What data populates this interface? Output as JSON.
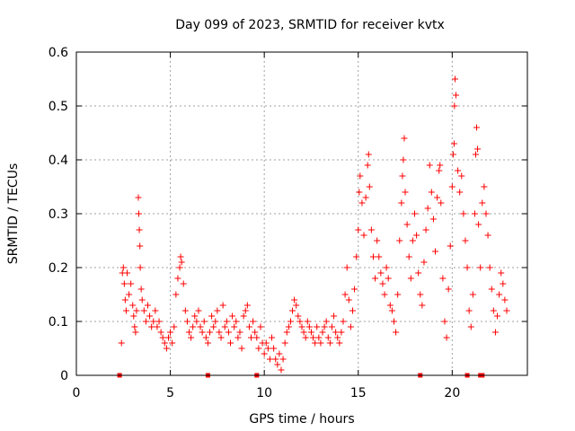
{
  "chart_data": {
    "type": "scatter",
    "title": "Day 099 of 2023, SRMTID for receiver kvtx",
    "xlabel": "GPS time / hours",
    "ylabel": "SRMTID / TECUs",
    "xlim": [
      0,
      24
    ],
    "ylim": [
      0,
      0.6
    ],
    "x_ticks": [
      0,
      5,
      10,
      15,
      20
    ],
    "x_tick_labels": [
      "0",
      "5",
      "10",
      "15",
      "20"
    ],
    "y_ticks": [
      0,
      0.1,
      0.2,
      0.3,
      0.4,
      0.5,
      0.6
    ],
    "y_tick_labels": [
      "0",
      "0.1",
      "0.2",
      "0.3",
      "0.4",
      "0.5",
      "0.6"
    ],
    "grid": true,
    "marker": "+",
    "color": "#ff0000",
    "series": [
      {
        "name": "SRMTID",
        "points": [
          [
            2.4,
            0.06
          ],
          [
            2.45,
            0.19
          ],
          [
            2.5,
            0.2
          ],
          [
            2.55,
            0.17
          ],
          [
            2.6,
            0.14
          ],
          [
            2.65,
            0.12
          ],
          [
            2.7,
            0.19
          ],
          [
            2.8,
            0.15
          ],
          [
            2.9,
            0.17
          ],
          [
            3.0,
            0.13
          ],
          [
            3.05,
            0.11
          ],
          [
            3.1,
            0.09
          ],
          [
            3.15,
            0.08
          ],
          [
            3.2,
            0.12
          ],
          [
            3.3,
            0.33
          ],
          [
            3.32,
            0.3
          ],
          [
            3.35,
            0.27
          ],
          [
            3.38,
            0.24
          ],
          [
            3.4,
            0.2
          ],
          [
            3.45,
            0.16
          ],
          [
            3.5,
            0.14
          ],
          [
            3.6,
            0.12
          ],
          [
            3.7,
            0.1
          ],
          [
            3.8,
            0.13
          ],
          [
            3.9,
            0.11
          ],
          [
            4.0,
            0.09
          ],
          [
            4.1,
            0.1
          ],
          [
            4.2,
            0.12
          ],
          [
            4.3,
            0.09
          ],
          [
            4.4,
            0.1
          ],
          [
            4.5,
            0.08
          ],
          [
            4.6,
            0.07
          ],
          [
            4.7,
            0.06
          ],
          [
            4.8,
            0.05
          ],
          [
            4.9,
            0.07
          ],
          [
            5.0,
            0.08
          ],
          [
            5.1,
            0.06
          ],
          [
            5.2,
            0.09
          ],
          [
            5.3,
            0.15
          ],
          [
            5.4,
            0.18
          ],
          [
            5.5,
            0.2
          ],
          [
            5.55,
            0.22
          ],
          [
            5.6,
            0.21
          ],
          [
            5.7,
            0.17
          ],
          [
            5.8,
            0.12
          ],
          [
            5.9,
            0.1
          ],
          [
            6.0,
            0.08
          ],
          [
            6.1,
            0.07
          ],
          [
            6.2,
            0.09
          ],
          [
            6.3,
            0.11
          ],
          [
            6.4,
            0.1
          ],
          [
            6.5,
            0.12
          ],
          [
            6.6,
            0.09
          ],
          [
            6.7,
            0.08
          ],
          [
            6.8,
            0.1
          ],
          [
            6.9,
            0.07
          ],
          [
            7.0,
            0.06
          ],
          [
            7.1,
            0.08
          ],
          [
            7.2,
            0.11
          ],
          [
            7.3,
            0.09
          ],
          [
            7.4,
            0.1
          ],
          [
            7.5,
            0.12
          ],
          [
            7.6,
            0.08
          ],
          [
            7.7,
            0.07
          ],
          [
            7.8,
            0.13
          ],
          [
            7.9,
            0.09
          ],
          [
            8.0,
            0.1
          ],
          [
            8.1,
            0.08
          ],
          [
            8.2,
            0.06
          ],
          [
            8.3,
            0.11
          ],
          [
            8.4,
            0.09
          ],
          [
            8.5,
            0.1
          ],
          [
            8.6,
            0.07
          ],
          [
            8.7,
            0.08
          ],
          [
            8.8,
            0.05
          ],
          [
            8.9,
            0.11
          ],
          [
            9.0,
            0.12
          ],
          [
            9.1,
            0.13
          ],
          [
            9.2,
            0.09
          ],
          [
            9.3,
            0.07
          ],
          [
            9.4,
            0.1
          ],
          [
            9.5,
            0.08
          ],
          [
            9.6,
            0.07
          ],
          [
            9.7,
            0.05
          ],
          [
            9.8,
            0.09
          ],
          [
            9.9,
            0.06
          ],
          [
            10.0,
            0.04
          ],
          [
            10.1,
            0.06
          ],
          [
            10.2,
            0.05
          ],
          [
            10.3,
            0.03
          ],
          [
            10.4,
            0.07
          ],
          [
            10.5,
            0.05
          ],
          [
            10.6,
            0.03
          ],
          [
            10.7,
            0.02
          ],
          [
            10.8,
            0.04
          ],
          [
            10.9,
            0.01
          ],
          [
            11.0,
            0.03
          ],
          [
            11.1,
            0.06
          ],
          [
            11.2,
            0.08
          ],
          [
            11.3,
            0.09
          ],
          [
            11.4,
            0.1
          ],
          [
            11.5,
            0.12
          ],
          [
            11.6,
            0.14
          ],
          [
            11.7,
            0.13
          ],
          [
            11.8,
            0.11
          ],
          [
            11.9,
            0.1
          ],
          [
            12.0,
            0.09
          ],
          [
            12.1,
            0.08
          ],
          [
            12.2,
            0.07
          ],
          [
            12.3,
            0.1
          ],
          [
            12.4,
            0.09
          ],
          [
            12.5,
            0.08
          ],
          [
            12.6,
            0.07
          ],
          [
            12.7,
            0.06
          ],
          [
            12.8,
            0.09
          ],
          [
            12.9,
            0.07
          ],
          [
            13.0,
            0.06
          ],
          [
            13.1,
            0.08
          ],
          [
            13.2,
            0.09
          ],
          [
            13.3,
            0.1
          ],
          [
            13.4,
            0.07
          ],
          [
            13.5,
            0.06
          ],
          [
            13.6,
            0.09
          ],
          [
            13.7,
            0.11
          ],
          [
            13.8,
            0.08
          ],
          [
            13.9,
            0.07
          ],
          [
            14.0,
            0.06
          ],
          [
            14.1,
            0.08
          ],
          [
            14.2,
            0.1
          ],
          [
            14.3,
            0.15
          ],
          [
            14.4,
            0.2
          ],
          [
            14.5,
            0.14
          ],
          [
            14.6,
            0.09
          ],
          [
            14.7,
            0.12
          ],
          [
            14.8,
            0.16
          ],
          [
            14.9,
            0.22
          ],
          [
            15.0,
            0.27
          ],
          [
            15.05,
            0.34
          ],
          [
            15.1,
            0.37
          ],
          [
            15.2,
            0.32
          ],
          [
            15.3,
            0.26
          ],
          [
            15.4,
            0.33
          ],
          [
            15.5,
            0.39
          ],
          [
            15.55,
            0.41
          ],
          [
            15.6,
            0.35
          ],
          [
            15.7,
            0.27
          ],
          [
            15.8,
            0.22
          ],
          [
            15.9,
            0.18
          ],
          [
            16.0,
            0.25
          ],
          [
            16.1,
            0.22
          ],
          [
            16.2,
            0.19
          ],
          [
            16.3,
            0.17
          ],
          [
            16.4,
            0.15
          ],
          [
            16.5,
            0.2
          ],
          [
            16.6,
            0.18
          ],
          [
            16.7,
            0.13
          ],
          [
            16.8,
            0.12
          ],
          [
            16.9,
            0.1
          ],
          [
            17.0,
            0.08
          ],
          [
            17.1,
            0.15
          ],
          [
            17.2,
            0.25
          ],
          [
            17.3,
            0.32
          ],
          [
            17.35,
            0.37
          ],
          [
            17.4,
            0.4
          ],
          [
            17.45,
            0.44
          ],
          [
            17.5,
            0.34
          ],
          [
            17.6,
            0.28
          ],
          [
            17.7,
            0.22
          ],
          [
            17.8,
            0.18
          ],
          [
            17.9,
            0.25
          ],
          [
            18.0,
            0.3
          ],
          [
            18.1,
            0.26
          ],
          [
            18.2,
            0.19
          ],
          [
            18.3,
            0.15
          ],
          [
            18.4,
            0.13
          ],
          [
            18.5,
            0.21
          ],
          [
            18.6,
            0.27
          ],
          [
            18.7,
            0.31
          ],
          [
            18.8,
            0.39
          ],
          [
            18.9,
            0.34
          ],
          [
            19.0,
            0.29
          ],
          [
            19.1,
            0.23
          ],
          [
            19.2,
            0.33
          ],
          [
            19.3,
            0.38
          ],
          [
            19.35,
            0.39
          ],
          [
            19.4,
            0.32
          ],
          [
            19.5,
            0.18
          ],
          [
            19.6,
            0.1
          ],
          [
            19.7,
            0.07
          ],
          [
            19.8,
            0.16
          ],
          [
            19.9,
            0.24
          ],
          [
            20.0,
            0.35
          ],
          [
            20.05,
            0.41
          ],
          [
            20.1,
            0.43
          ],
          [
            20.12,
            0.5
          ],
          [
            20.15,
            0.55
          ],
          [
            20.2,
            0.52
          ],
          [
            20.3,
            0.38
          ],
          [
            20.4,
            0.34
          ],
          [
            20.5,
            0.37
          ],
          [
            20.6,
            0.3
          ],
          [
            20.7,
            0.25
          ],
          [
            20.8,
            0.2
          ],
          [
            20.9,
            0.12
          ],
          [
            21.0,
            0.09
          ],
          [
            21.1,
            0.15
          ],
          [
            21.2,
            0.3
          ],
          [
            21.25,
            0.41
          ],
          [
            21.3,
            0.46
          ],
          [
            21.35,
            0.42
          ],
          [
            21.4,
            0.28
          ],
          [
            21.5,
            0.2
          ],
          [
            21.6,
            0.32
          ],
          [
            21.7,
            0.35
          ],
          [
            21.8,
            0.3
          ],
          [
            21.9,
            0.26
          ],
          [
            22.0,
            0.2
          ],
          [
            22.1,
            0.16
          ],
          [
            22.2,
            0.12
          ],
          [
            22.3,
            0.08
          ],
          [
            22.4,
            0.11
          ],
          [
            22.5,
            0.15
          ],
          [
            22.6,
            0.19
          ],
          [
            22.7,
            0.17
          ],
          [
            22.8,
            0.14
          ],
          [
            22.9,
            0.12
          ]
        ]
      }
    ],
    "axis_markers_x": [
      2.3,
      7.0,
      9.6,
      18.3,
      20.8,
      21.5,
      21.6
    ]
  }
}
